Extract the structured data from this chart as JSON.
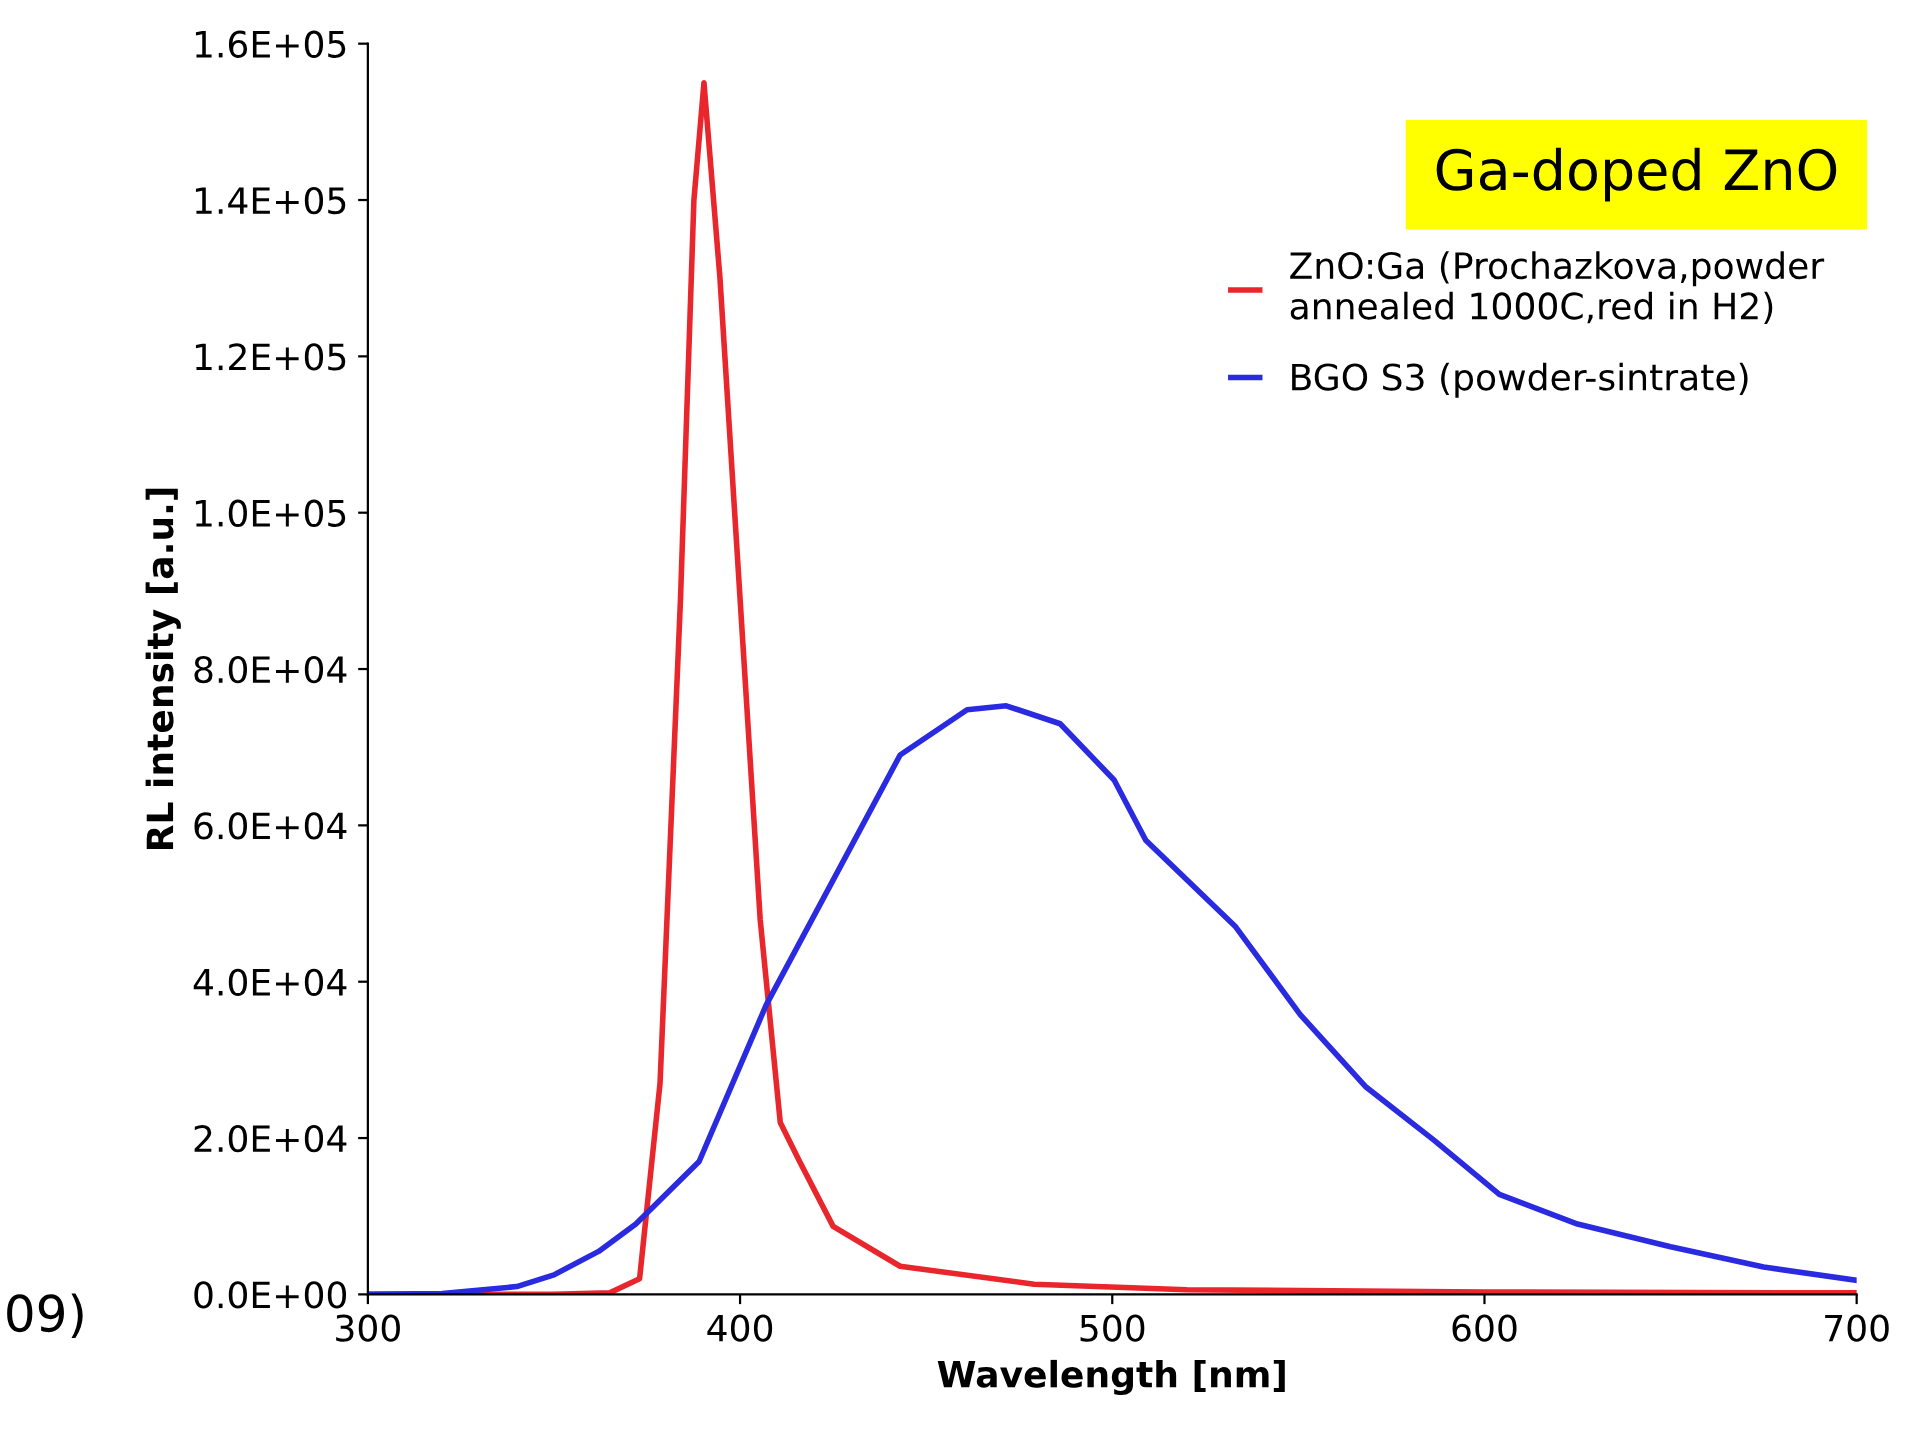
{
  "chart_data": {
    "type": "line",
    "xlabel": "Wavelength [nm]",
    "ylabel": "RL intensity [a.u.]",
    "xlim": [
      300,
      700
    ],
    "xticks": [
      300,
      400,
      500,
      600,
      700
    ],
    "ylim": [
      0,
      160000
    ],
    "yticks": [
      {
        "value": 0,
        "label": "0.0E+00"
      },
      {
        "value": 20000,
        "label": "2.0E+04"
      },
      {
        "value": 40000,
        "label": "4.0E+04"
      },
      {
        "value": 60000,
        "label": "6.0E+04"
      },
      {
        "value": 80000,
        "label": "8.0E+04"
      },
      {
        "value": 100000,
        "label": "1.0E+05"
      },
      {
        "value": 120000,
        "label": "1.2E+05"
      },
      {
        "value": 140000,
        "label": "1.4E+05"
      },
      {
        "value": 160000,
        "label": "1.6E+05"
      }
    ],
    "grid": false,
    "legend": "top right",
    "marker": "none",
    "line_style": "solid",
    "annotations": [
      "Ga-doped ZnO",
      "09)"
    ],
    "series": [
      {
        "name": "ZnO:Ga (Prochazkova,powder\nannealed 1000C,red in H2)",
        "color": "#e8262b",
        "x": [
          300,
          350,
          365,
          373,
          378.5,
          384,
          387.6,
          390.3,
          394.6,
          400,
          405.4,
          410.8,
          416,
          425,
          443,
          479,
          520,
          600,
          700
        ],
        "values": [
          0,
          0,
          200,
          2000,
          27000,
          89000,
          140000,
          155000,
          130000,
          89000,
          48000,
          22000,
          17000,
          8700,
          3600,
          1300,
          600,
          300,
          200
        ]
      },
      {
        "name": "BGO S3 (powder-sintrate)",
        "color": "#2a2ae0",
        "x": [
          300,
          320,
          340,
          350,
          362,
          372,
          389,
          407,
          425,
          443,
          461,
          471.5,
          486,
          500.5,
          509,
          533,
          550.5,
          568,
          586.5,
          604,
          625,
          650,
          675,
          700
        ],
        "values": [
          0,
          100,
          1000,
          2500,
          5500,
          9000,
          17000,
          37000,
          53000,
          69000,
          74800,
          75300,
          73000,
          65800,
          58100,
          47100,
          35800,
          26600,
          19700,
          12800,
          9000,
          6100,
          3500,
          1800
        ]
      }
    ]
  }
}
